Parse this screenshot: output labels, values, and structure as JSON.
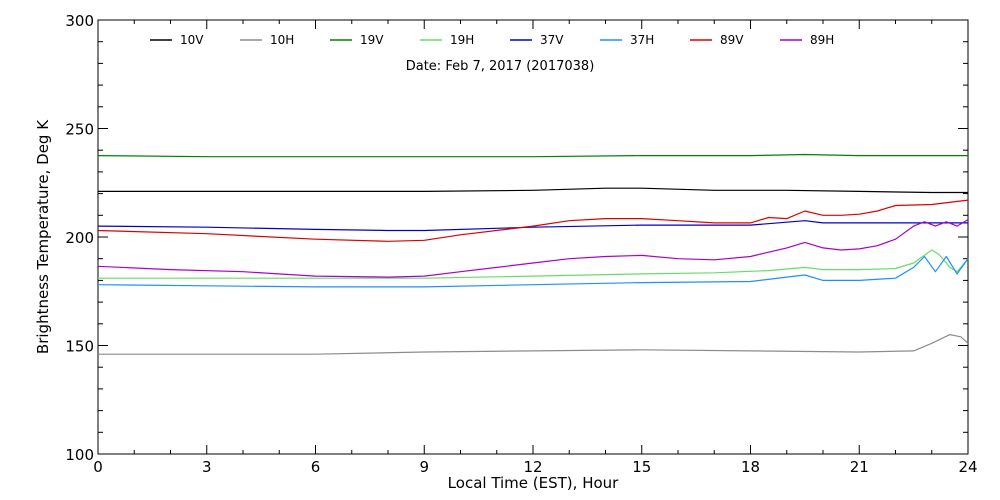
{
  "chart_data": {
    "type": "line",
    "date_label": "Date: Feb  7, 2017 (2017038)",
    "xlabel": "Local Time (EST), Hour",
    "ylabel": "Brightness Temperature, Deg K",
    "xlim": [
      0,
      24
    ],
    "ylim": [
      100,
      300
    ],
    "xticks": [
      0,
      3,
      6,
      9,
      12,
      15,
      18,
      21,
      24
    ],
    "yticks": [
      100,
      150,
      200,
      250,
      300
    ],
    "grid": false,
    "legend_position": "top",
    "series": [
      {
        "name": "10V",
        "color": "#000000",
        "x": [
          0,
          3,
          6,
          9,
          12,
          14,
          15,
          17,
          19,
          21,
          23,
          24
        ],
        "y": [
          221,
          221,
          221,
          221,
          221.5,
          222.5,
          222.5,
          221.5,
          221.5,
          221,
          220.5,
          220.5
        ]
      },
      {
        "name": "10H",
        "color": "#8c8c8c",
        "x": [
          0,
          3,
          6,
          9,
          12,
          15,
          18,
          21,
          22.5,
          23,
          23.5,
          23.8,
          24
        ],
        "y": [
          146,
          146,
          146,
          147,
          147.5,
          148,
          147.5,
          147,
          147.5,
          151,
          155,
          154,
          151
        ]
      },
      {
        "name": "19V",
        "color": "#008000",
        "x": [
          0,
          3,
          6,
          9,
          12,
          15,
          18,
          19.5,
          21,
          24
        ],
        "y": [
          237.5,
          237,
          237,
          237,
          237,
          237.5,
          237.5,
          238,
          237.5,
          237.5
        ]
      },
      {
        "name": "19H",
        "color": "#66dd66",
        "x": [
          0,
          3,
          6,
          9,
          12,
          15,
          17,
          18.5,
          19.5,
          20,
          21,
          22,
          22.5,
          23,
          23.2,
          23.5,
          23.7,
          24
        ],
        "y": [
          181,
          181,
          181,
          181,
          182,
          183,
          183.5,
          184.5,
          186,
          185,
          185,
          185.5,
          188,
          194,
          192,
          186,
          184,
          190
        ]
      },
      {
        "name": "37V",
        "color": "#0000cc",
        "x": [
          0,
          3,
          6,
          8,
          9,
          12,
          15,
          18,
          19.5,
          20,
          21,
          24
        ],
        "y": [
          205,
          204.5,
          203.5,
          203,
          203,
          204.5,
          205.5,
          205.5,
          207.5,
          206.5,
          206.5,
          206.5
        ]
      },
      {
        "name": "37H",
        "color": "#1e90ff",
        "x": [
          0,
          3,
          6,
          9,
          12,
          15,
          18,
          19,
          19.5,
          20,
          20.5,
          21,
          22,
          22.5,
          22.8,
          23.1,
          23.4,
          23.7,
          24
        ],
        "y": [
          178,
          177.5,
          177,
          177,
          178,
          179,
          179.5,
          181.5,
          182.5,
          180,
          180,
          180,
          181,
          186,
          191,
          184,
          191,
          183,
          190
        ]
      },
      {
        "name": "89V",
        "color": "#dd0000",
        "x": [
          0,
          3,
          6,
          8,
          9,
          10,
          12,
          13,
          14,
          15,
          16,
          17,
          18,
          18.5,
          19,
          19.5,
          20,
          20.5,
          21,
          21.5,
          22,
          23,
          24
        ],
        "y": [
          203,
          201.5,
          199,
          198,
          198.5,
          201,
          205,
          207.5,
          208.5,
          208.5,
          207.5,
          206.5,
          206.5,
          209,
          208.5,
          212,
          210,
          210,
          210.5,
          212,
          214.5,
          215,
          217
        ]
      },
      {
        "name": "89H",
        "color": "#aa00cc",
        "x": [
          0,
          2,
          4,
          6,
          8,
          9,
          10,
          11,
          12,
          13,
          14,
          15,
          16,
          17,
          18,
          18.5,
          19,
          19.5,
          20,
          20.5,
          21,
          21.5,
          22,
          22.5,
          22.8,
          23.1,
          23.4,
          23.7,
          24
        ],
        "y": [
          186.5,
          185,
          184,
          182,
          181.5,
          182,
          184,
          186,
          188,
          190,
          191,
          191.5,
          190,
          189.5,
          191,
          193,
          195,
          197.5,
          195,
          194,
          194.5,
          196,
          199,
          205,
          207,
          205,
          207,
          205,
          208
        ]
      }
    ]
  }
}
